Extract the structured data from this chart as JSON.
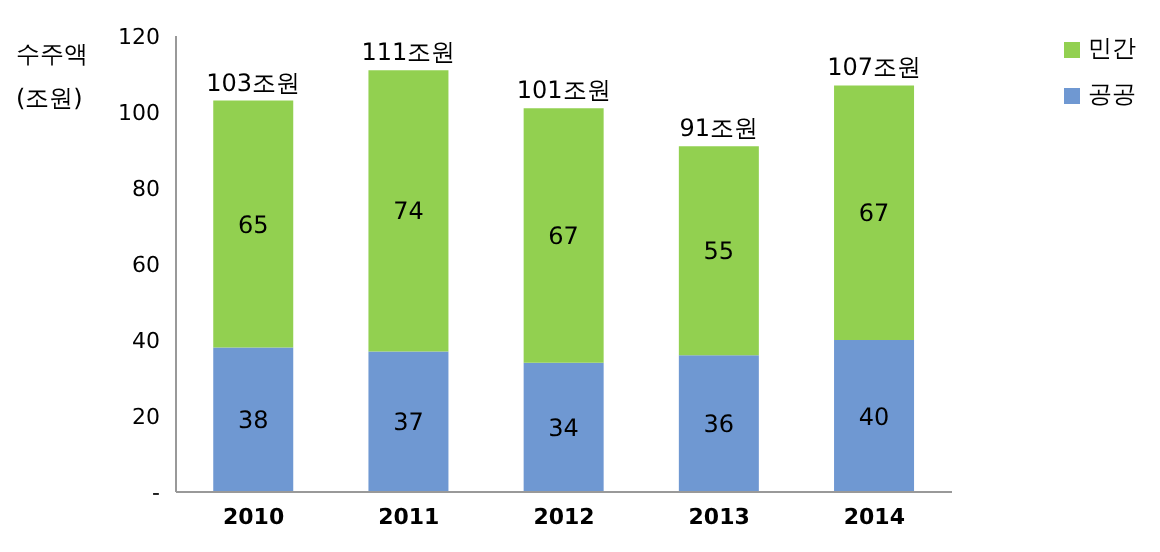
{
  "chart_data": {
    "type": "bar",
    "stacked": true,
    "ylabel": "수주액 (조원)",
    "categories": [
      "2010",
      "2011",
      "2012",
      "2013",
      "2014"
    ],
    "series": [
      {
        "name": "공공",
        "color": "#6f98d2",
        "values": [
          38,
          37,
          34,
          36,
          40
        ]
      },
      {
        "name": "민간",
        "color": "#92d050",
        "values": [
          65,
          74,
          67,
          55,
          67
        ]
      }
    ],
    "totals": [
      "103조원",
      "111조원",
      "101조원",
      "91조원",
      "107조원"
    ],
    "data_labels": true,
    "ylim": [
      0,
      120
    ],
    "yticks": [
      {
        "value": 0,
        "label": "-"
      },
      20,
      40,
      60,
      80,
      100,
      120
    ],
    "grid": false,
    "legend": "top right"
  }
}
